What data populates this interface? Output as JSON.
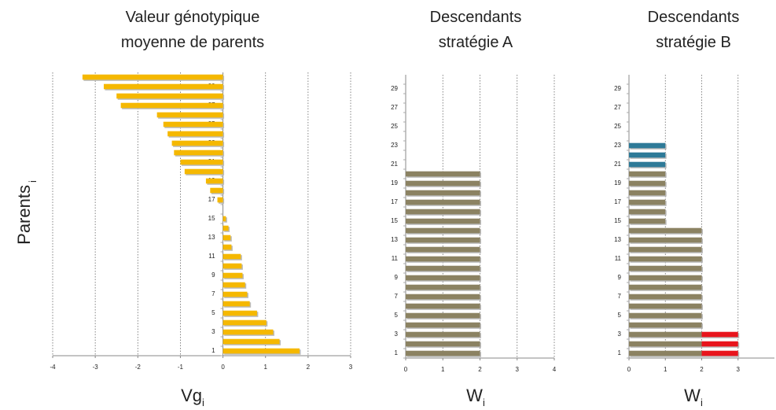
{
  "ylabel": {
    "text": "Parents",
    "subscript": "i"
  },
  "chart_data": [
    {
      "type": "bar",
      "orientation": "horizontal",
      "title": [
        "Valeur génotypique",
        "moyenne de parents"
      ],
      "xlabel": "Vg",
      "xlabel_subscript": "i",
      "categories": [
        1,
        null,
        3,
        null,
        5,
        null,
        7,
        null,
        9,
        null,
        11,
        null,
        13,
        null,
        15,
        null,
        17,
        null,
        19,
        null,
        21,
        null,
        23,
        null,
        25,
        null,
        27,
        null,
        29,
        null
      ],
      "series": [
        {
          "color": "#f5b800",
          "values": [
            1.8,
            1.33,
            1.18,
            1.02,
            0.8,
            0.63,
            0.57,
            0.52,
            0.46,
            0.44,
            0.42,
            0.2,
            0.18,
            0.13,
            0.07,
            0,
            -0.13,
            -0.3,
            -0.4,
            -0.9,
            -1.0,
            -1.15,
            -1.2,
            -1.3,
            -1.4,
            -1.55,
            -2.4,
            -2.5,
            -2.8,
            -3.3
          ]
        }
      ],
      "xlim": [
        -4,
        3
      ],
      "xticks": [
        -4,
        -3,
        -2,
        -1,
        0,
        1,
        2,
        3
      ],
      "grid": true
    },
    {
      "type": "bar",
      "orientation": "horizontal",
      "title": [
        "Descendants",
        "stratégie A"
      ],
      "xlabel": "W",
      "xlabel_subscript": "i",
      "categories": [
        1,
        null,
        3,
        null,
        5,
        null,
        7,
        null,
        9,
        null,
        11,
        null,
        13,
        null,
        15,
        null,
        17,
        null,
        19,
        null,
        21,
        null,
        23,
        null,
        25,
        null,
        27,
        null,
        29,
        null
      ],
      "series": [
        {
          "color": "#8b8262",
          "values": [
            2,
            2,
            2,
            2,
            2,
            2,
            2,
            2,
            2,
            2,
            2,
            2,
            2,
            2,
            2,
            2,
            2,
            2,
            2,
            2,
            0,
            0,
            0,
            0,
            0,
            0,
            0,
            0,
            0,
            0
          ]
        }
      ],
      "xlim": [
        0,
        4
      ],
      "xticks": [
        0,
        1,
        2,
        3,
        4
      ],
      "grid": true
    },
    {
      "type": "bar",
      "orientation": "horizontal",
      "stacked": true,
      "title": [
        "Descendants",
        "stratégie B"
      ],
      "xlabel": "W",
      "xlabel_subscript": "i",
      "categories": [
        1,
        null,
        3,
        null,
        5,
        null,
        7,
        null,
        9,
        null,
        11,
        null,
        13,
        null,
        15,
        null,
        17,
        null,
        19,
        null,
        21,
        null,
        23,
        null,
        25,
        null,
        27,
        null,
        29,
        null
      ],
      "series": [
        {
          "color": "#8b8262",
          "values": [
            2,
            2,
            2,
            2,
            2,
            2,
            2,
            2,
            2,
            2,
            2,
            2,
            2,
            2,
            1,
            1,
            1,
            1,
            1,
            1,
            0,
            0,
            0,
            0,
            0,
            0,
            0,
            0,
            0,
            0
          ]
        },
        {
          "color": "#e8141c",
          "values": [
            1,
            1,
            1,
            0,
            0,
            0,
            0,
            0,
            0,
            0,
            0,
            0,
            0,
            0,
            0,
            0,
            0,
            0,
            0,
            0,
            0,
            0,
            0,
            0,
            0,
            0,
            0,
            0,
            0,
            0
          ]
        },
        {
          "color": "#2e7a98",
          "values": [
            0,
            0,
            0,
            0,
            0,
            0,
            0,
            0,
            0,
            0,
            0,
            0,
            0,
            0,
            0,
            0,
            0,
            0,
            0,
            0,
            1,
            1,
            1,
            0,
            0,
            0,
            0,
            0,
            0,
            0
          ]
        }
      ],
      "xlim": [
        0,
        4
      ],
      "xticks": [
        0,
        1,
        2,
        3
      ],
      "grid": true
    }
  ]
}
